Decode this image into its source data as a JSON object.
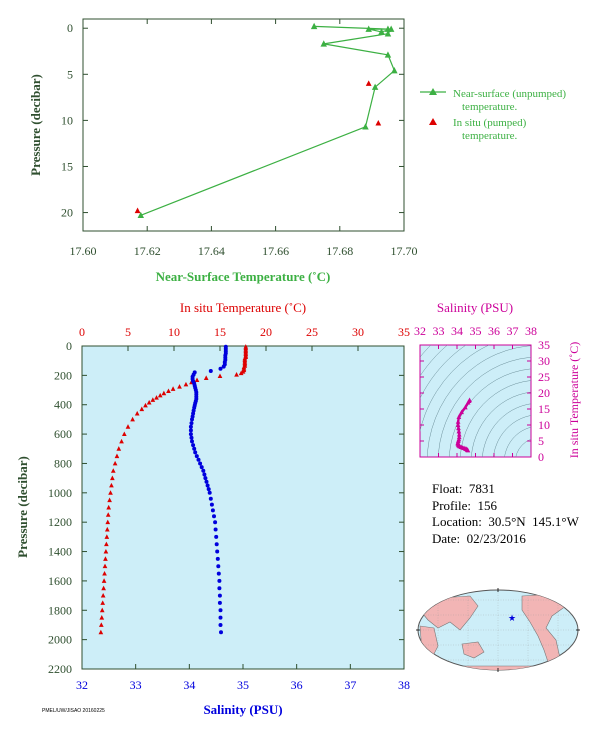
{
  "colors": {
    "near_surface": "#3cb043",
    "in_situ_temp": "#dd0000",
    "salinity": "#0000dd",
    "ts": "#cc0099",
    "axis_text": "#2f4f2f",
    "panel_bg": "#cdeef8",
    "land": "#f2b5b5"
  },
  "icons": {
    "float_marker": "star-icon"
  },
  "chart_data": [
    {
      "id": "near_surface",
      "type": "line",
      "xlabel": "Near-Surface Temperature (˚C)",
      "ylabel": "Pressure (decibar)",
      "xlim": [
        17.6,
        17.7
      ],
      "ylim": [
        22,
        -1
      ],
      "xticks": [
        "17.60",
        "17.62",
        "17.64",
        "17.66",
        "17.68",
        "17.70"
      ],
      "yticks": [
        "0",
        "5",
        "10",
        "15",
        "20"
      ],
      "series": [
        {
          "name": "Near-surface (unpumped) temperature.",
          "marker": "triangle-line",
          "points": [
            [
              17.672,
              -0.2
            ],
            [
              17.695,
              0.1
            ],
            [
              17.689,
              0.1
            ],
            [
              17.693,
              0.4
            ],
            [
              17.696,
              0.1
            ],
            [
              17.695,
              0.6
            ],
            [
              17.675,
              1.7
            ],
            [
              17.695,
              2.9
            ],
            [
              17.697,
              4.6
            ],
            [
              17.691,
              6.4
            ],
            [
              17.688,
              10.7
            ],
            [
              17.618,
              20.3
            ]
          ]
        },
        {
          "name": "In situ (pumped) temperature.",
          "marker": "triangle",
          "points": [
            [
              17.617,
              19.8
            ],
            [
              17.689,
              6.0
            ],
            [
              17.692,
              10.3
            ]
          ]
        }
      ],
      "legend": "right"
    },
    {
      "id": "profile",
      "type": "scatter",
      "top_label": "In situ Temperature (˚C)",
      "bottom_label": "Salinity (PSU)",
      "ylabel": "Pressure (decibar)",
      "temp_lim": [
        0,
        35
      ],
      "sal_lim": [
        32,
        38
      ],
      "ylim": [
        2200,
        0
      ],
      "temp_ticks": [
        "0",
        "5",
        "10",
        "15",
        "20",
        "25",
        "30",
        "35"
      ],
      "sal_ticks": [
        "32",
        "33",
        "34",
        "35",
        "36",
        "37",
        "38"
      ],
      "yticks": [
        "0",
        "200",
        "400",
        "600",
        "800",
        "1000",
        "1200",
        "1400",
        "1600",
        "1800",
        "2000",
        "2200"
      ],
      "temperature": {
        "name": "In situ Temperature",
        "points": [
          [
            17.8,
            5
          ],
          [
            17.8,
            15
          ],
          [
            17.8,
            25
          ],
          [
            17.8,
            35
          ],
          [
            17.8,
            45
          ],
          [
            17.8,
            55
          ],
          [
            17.8,
            65
          ],
          [
            17.8,
            75
          ],
          [
            17.7,
            85
          ],
          [
            17.7,
            95
          ],
          [
            17.7,
            105
          ],
          [
            17.7,
            115
          ],
          [
            17.7,
            125
          ],
          [
            17.7,
            135
          ],
          [
            17.6,
            145
          ],
          [
            17.6,
            155
          ],
          [
            17.6,
            165
          ],
          [
            17.5,
            175
          ],
          [
            17.3,
            185
          ],
          [
            16.8,
            195
          ],
          [
            15.0,
            205
          ],
          [
            13.5,
            218
          ],
          [
            12.5,
            232
          ],
          [
            11.9,
            247
          ],
          [
            11.3,
            262
          ],
          [
            10.6,
            277
          ],
          [
            9.9,
            292
          ],
          [
            9.4,
            307
          ],
          [
            8.9,
            322
          ],
          [
            8.5,
            337
          ],
          [
            8.1,
            352
          ],
          [
            7.7,
            367
          ],
          [
            7.3,
            385
          ],
          [
            6.9,
            405
          ],
          [
            6.5,
            430
          ],
          [
            6.0,
            460
          ],
          [
            5.5,
            500
          ],
          [
            5.0,
            550
          ],
          [
            4.6,
            600
          ],
          [
            4.3,
            650
          ],
          [
            4.0,
            700
          ],
          [
            3.8,
            750
          ],
          [
            3.6,
            800
          ],
          [
            3.4,
            850
          ],
          [
            3.3,
            900
          ],
          [
            3.2,
            950
          ],
          [
            3.1,
            1000
          ],
          [
            3.0,
            1050
          ],
          [
            2.9,
            1100
          ],
          [
            2.85,
            1150
          ],
          [
            2.8,
            1200
          ],
          [
            2.75,
            1250
          ],
          [
            2.7,
            1300
          ],
          [
            2.65,
            1350
          ],
          [
            2.6,
            1400
          ],
          [
            2.55,
            1450
          ],
          [
            2.5,
            1500
          ],
          [
            2.45,
            1550
          ],
          [
            2.4,
            1600
          ],
          [
            2.35,
            1650
          ],
          [
            2.3,
            1700
          ],
          [
            2.25,
            1750
          ],
          [
            2.2,
            1800
          ],
          [
            2.15,
            1850
          ],
          [
            2.1,
            1900
          ],
          [
            2.05,
            1950
          ]
        ]
      },
      "salinity": {
        "name": "Salinity",
        "points": [
          [
            34.68,
            5
          ],
          [
            34.68,
            20
          ],
          [
            34.68,
            35
          ],
          [
            34.68,
            50
          ],
          [
            34.67,
            65
          ],
          [
            34.67,
            80
          ],
          [
            34.67,
            95
          ],
          [
            34.66,
            110
          ],
          [
            34.66,
            125
          ],
          [
            34.64,
            140
          ],
          [
            34.58,
            155
          ],
          [
            34.4,
            170
          ],
          [
            34.1,
            180
          ],
          [
            34.08,
            195
          ],
          [
            34.06,
            210
          ],
          [
            34.06,
            225
          ],
          [
            34.07,
            240
          ],
          [
            34.09,
            255
          ],
          [
            34.1,
            270
          ],
          [
            34.11,
            285
          ],
          [
            34.12,
            300
          ],
          [
            34.13,
            315
          ],
          [
            34.13,
            330
          ],
          [
            34.13,
            345
          ],
          [
            34.13,
            360
          ],
          [
            34.12,
            375
          ],
          [
            34.11,
            390
          ],
          [
            34.1,
            405
          ],
          [
            34.09,
            420
          ],
          [
            34.08,
            440
          ],
          [
            34.07,
            460
          ],
          [
            34.06,
            480
          ],
          [
            34.05,
            500
          ],
          [
            34.04,
            525
          ],
          [
            34.03,
            550
          ],
          [
            34.03,
            575
          ],
          [
            34.03,
            600
          ],
          [
            34.04,
            625
          ],
          [
            34.05,
            650
          ],
          [
            34.07,
            675
          ],
          [
            34.09,
            700
          ],
          [
            34.11,
            725
          ],
          [
            34.14,
            750
          ],
          [
            34.17,
            775
          ],
          [
            34.2,
            800
          ],
          [
            34.23,
            825
          ],
          [
            34.26,
            850
          ],
          [
            34.28,
            875
          ],
          [
            34.3,
            900
          ],
          [
            34.32,
            925
          ],
          [
            34.34,
            950
          ],
          [
            34.36,
            975
          ],
          [
            34.38,
            1000
          ],
          [
            34.4,
            1040
          ],
          [
            34.42,
            1080
          ],
          [
            34.44,
            1120
          ],
          [
            34.46,
            1160
          ],
          [
            34.48,
            1200
          ],
          [
            34.49,
            1250
          ],
          [
            34.5,
            1300
          ],
          [
            34.51,
            1350
          ],
          [
            34.52,
            1400
          ],
          [
            34.53,
            1450
          ],
          [
            34.54,
            1500
          ],
          [
            34.55,
            1550
          ],
          [
            34.56,
            1600
          ],
          [
            34.56,
            1650
          ],
          [
            34.57,
            1700
          ],
          [
            34.57,
            1750
          ],
          [
            34.58,
            1800
          ],
          [
            34.58,
            1850
          ],
          [
            34.58,
            1900
          ],
          [
            34.59,
            1950
          ]
        ]
      }
    },
    {
      "id": "ts_diagram",
      "type": "scatter",
      "top_label": "Salinity (PSU)",
      "right_label": "In situ Temperature (˚C)",
      "xlim": [
        32,
        38
      ],
      "ylim": [
        0,
        35
      ],
      "xticks": [
        "32",
        "33",
        "34",
        "35",
        "36",
        "37",
        "38"
      ],
      "yticks": [
        "0",
        "5",
        "10",
        "15",
        "20",
        "25",
        "30",
        "35"
      ],
      "points": [
        [
          34.68,
          17.8
        ],
        [
          34.66,
          17.5
        ],
        [
          34.6,
          17.0
        ],
        [
          34.45,
          15.5
        ],
        [
          34.25,
          14.0
        ],
        [
          34.1,
          12.5
        ],
        [
          34.06,
          11.0
        ],
        [
          34.06,
          10.0
        ],
        [
          34.08,
          9.0
        ],
        [
          34.1,
          8.0
        ],
        [
          34.12,
          7.0
        ],
        [
          34.12,
          6.2
        ],
        [
          34.1,
          5.5
        ],
        [
          34.07,
          5.0
        ],
        [
          34.05,
          4.5
        ],
        [
          34.04,
          4.2
        ],
        [
          34.06,
          3.8
        ],
        [
          34.1,
          3.5
        ],
        [
          34.15,
          3.3
        ],
        [
          34.22,
          3.1
        ],
        [
          34.3,
          2.9
        ],
        [
          34.38,
          2.8
        ],
        [
          34.44,
          2.6
        ],
        [
          34.5,
          2.5
        ],
        [
          34.54,
          2.3
        ],
        [
          34.57,
          2.2
        ],
        [
          34.59,
          2.05
        ]
      ]
    }
  ],
  "legend": {
    "near_surface_label_1": "Near-surface (unpumped)",
    "near_surface_label_2": "temperature.",
    "in_situ_label_1": "In situ (pumped)",
    "in_situ_label_2": "temperature."
  },
  "float_info": {
    "float_label": "Float:",
    "float_value": "7831",
    "profile_label": "Profile:",
    "profile_value": "156",
    "location_label": "Location:",
    "location_value": "30.5°N  145.1°W",
    "date_label": "Date:",
    "date_value": "02/23/2016"
  },
  "footer_tiny": "PMEL/UW/JISAO 20160225"
}
